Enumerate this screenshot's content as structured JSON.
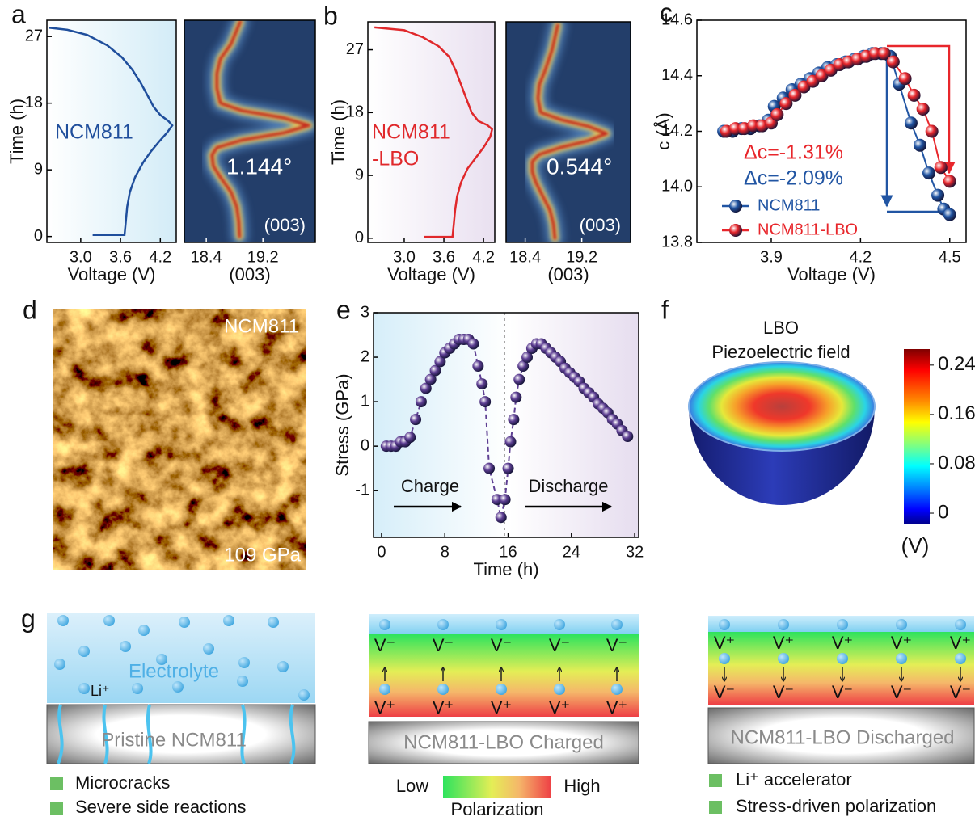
{
  "panel_labels": [
    "a",
    "b",
    "c",
    "d",
    "e",
    "f",
    "g"
  ],
  "chart_data": [
    {
      "type": "line",
      "xlabel": "Voltage (V)",
      "ylabel": "Time (h)",
      "annotation": [
        "NCM811"
      ],
      "color": "#1f4e9c",
      "x": [
        3.18,
        3.66,
        3.68,
        3.7,
        3.74,
        3.82,
        3.94,
        4.06,
        4.18,
        4.3,
        4.38,
        4.32,
        4.2,
        4.1,
        4.01,
        3.9,
        3.78,
        3.62,
        3.4,
        3.1,
        2.8,
        2.52
      ],
      "values": [
        0.2,
        0.2,
        2,
        4,
        6,
        8,
        10,
        11.5,
        12.8,
        14.0,
        15.0,
        15.6,
        16.4,
        17.5,
        19.0,
        20.8,
        22.5,
        24.2,
        25.8,
        27.2,
        27.9,
        28.2
      ],
      "xlim": [
        2.49,
        4.44
      ],
      "ylim": [
        -0.8,
        29.2
      ],
      "xticks": [
        {
          "value": 3,
          "label": "3.0"
        },
        3.6,
        4.2
      ],
      "yticks": [
        0,
        9,
        18,
        27
      ]
    },
    {
      "type": "heatmap",
      "xlabel": "(003)",
      "annotation": [
        "1.144°"
      ],
      "inset_label": "(003)",
      "x": [
        18.87,
        18.86,
        18.83,
        18.75,
        18.6,
        18.5,
        18.48,
        18.55,
        18.9,
        19.5,
        19.85,
        19.5,
        18.9,
        18.6,
        18.55,
        18.55,
        18.6,
        18.75,
        18.88
      ],
      "values": [
        0,
        2,
        4,
        6,
        8,
        9.5,
        11,
        12,
        13,
        14,
        15,
        16,
        17,
        18,
        20,
        22,
        24,
        26,
        29
      ],
      "xlim": [
        18.09,
        19.94
      ],
      "ylim": [
        -0.8,
        29.2
      ],
      "xticks": [
        18.4,
        19.2
      ]
    },
    {
      "type": "line",
      "xlabel": "Voltage (V)",
      "ylabel": "Time (h)",
      "annotation": [
        "NCM811",
        "-LBO"
      ],
      "color": "#e0282b",
      "x": [
        3.3,
        3.73,
        3.75,
        3.77,
        3.8,
        3.86,
        3.96,
        4.08,
        4.2,
        4.3,
        4.33,
        4.26,
        4.12,
        4.02,
        3.94,
        3.86,
        3.78,
        3.68,
        3.52,
        3.28,
        3.0,
        2.55
      ],
      "values": [
        0.2,
        0.2,
        2,
        4,
        6,
        8,
        10,
        11.5,
        13,
        14.5,
        15.6,
        16.2,
        16.8,
        18,
        20,
        22,
        24,
        26,
        27.5,
        28.8,
        29.8,
        30.2
      ],
      "xlim": [
        2.45,
        4.37
      ],
      "ylim": [
        -0.6,
        31.0
      ],
      "xticks": [
        {
          "value": 3,
          "label": "3.0"
        },
        3.6,
        4.2
      ],
      "yticks": [
        0,
        9,
        18,
        27
      ]
    },
    {
      "type": "heatmap",
      "xlabel": "(003)",
      "annotation": [
        "0.544°"
      ],
      "inset_label": "(003)",
      "x": [
        18.82,
        18.8,
        18.75,
        18.65,
        18.55,
        18.5,
        18.5,
        18.6,
        18.9,
        19.3,
        19.55,
        19.3,
        18.9,
        18.62,
        18.58,
        18.6,
        18.68,
        18.78,
        18.86
      ],
      "values": [
        0,
        2,
        4,
        6,
        8,
        9.5,
        11,
        12,
        13,
        14,
        15,
        16,
        17,
        18,
        20,
        22,
        24,
        27,
        30.5
      ],
      "xlim": [
        18.13,
        19.89
      ],
      "ylim": [
        -0.6,
        31.0
      ],
      "xticks": [
        18.4,
        19.2
      ]
    },
    {
      "type": "line",
      "markers": true,
      "xlabel": "Voltage (V)",
      "ylabel": "c (Å)",
      "annotation": [
        "Δc=-1.31%",
        "Δc=-2.09%"
      ],
      "series": [
        {
          "name": "NCM811",
          "color": "#2155a3",
          "x": [
            3.74,
            3.77,
            3.8,
            3.83,
            3.86,
            3.89,
            3.91,
            3.94,
            3.97,
            4.0,
            4.03,
            4.06,
            4.09,
            4.12,
            4.15,
            4.18,
            4.21,
            4.24,
            4.27,
            4.3,
            4.33,
            4.37,
            4.4,
            4.43,
            4.46,
            4.48,
            4.5
          ],
          "values": [
            14.2,
            14.2,
            14.21,
            14.21,
            14.22,
            14.24,
            14.29,
            14.32,
            14.35,
            14.37,
            14.39,
            14.41,
            14.43,
            14.44,
            14.45,
            14.46,
            14.47,
            14.48,
            14.48,
            14.47,
            14.37,
            14.23,
            14.15,
            14.05,
            13.97,
            13.92,
            13.9
          ]
        },
        {
          "name": "NCM811-LBO",
          "color": "#e8262b",
          "x": [
            3.75,
            3.78,
            3.81,
            3.84,
            3.87,
            3.9,
            3.92,
            3.95,
            3.98,
            4.01,
            4.04,
            4.07,
            4.1,
            4.13,
            4.16,
            4.19,
            4.22,
            4.25,
            4.28,
            4.31,
            4.35,
            4.38,
            4.41,
            4.44,
            4.47,
            4.5
          ],
          "values": [
            14.2,
            14.21,
            14.21,
            14.22,
            14.22,
            14.23,
            14.26,
            14.3,
            14.33,
            14.36,
            14.38,
            14.4,
            14.42,
            14.44,
            14.45,
            14.46,
            14.47,
            14.48,
            14.48,
            14.45,
            14.39,
            14.33,
            14.28,
            14.2,
            14.07,
            14.02
          ]
        }
      ],
      "xlim": [
        3.65,
        4.555
      ],
      "ylim": [
        13.8,
        14.6
      ],
      "xticks": [
        3.9,
        4.2,
        4.5
      ],
      "yticks": [
        13.8,
        {
          "value": 14,
          "label": "14.0"
        },
        14.2,
        14.4,
        14.6
      ]
    },
    {
      "type": "line",
      "markers": true,
      "line_style": "dashed",
      "xlabel": "Time (h)",
      "ylabel": "Stress (GPa)",
      "phases": [
        "Charge",
        "Discharge"
      ],
      "color": "#5e3f93",
      "x": [
        0.6,
        1.2,
        1.8,
        2.4,
        3.0,
        3.6,
        4.3,
        5.0,
        5.6,
        6.2,
        6.8,
        7.4,
        8.0,
        8.6,
        9.2,
        9.8,
        10.4,
        11.0,
        11.6,
        12.2,
        12.7,
        13.1,
        13.6,
        14.6,
        15.1,
        15.6,
        16.0,
        16.3,
        16.7,
        17.0,
        17.4,
        17.9,
        18.4,
        19.0,
        19.6,
        20.2,
        20.8,
        21.4,
        22.0,
        22.6,
        23.2,
        23.8,
        24.4,
        25.0,
        25.6,
        26.2,
        26.8,
        27.4,
        28.0,
        28.6,
        29.2,
        29.8,
        30.4,
        31.1
      ],
      "values": [
        0,
        0,
        0,
        0.1,
        0.1,
        0.2,
        0.6,
        1.0,
        1.3,
        1.5,
        1.7,
        1.9,
        2.1,
        2.2,
        2.3,
        2.4,
        2.4,
        2.4,
        2.3,
        1.8,
        1.4,
        1.0,
        -0.5,
        -1.2,
        -1.6,
        -1.2,
        -0.5,
        0.1,
        0.6,
        1.1,
        1.5,
        1.8,
        2.0,
        2.2,
        2.3,
        2.3,
        2.2,
        2.1,
        2.0,
        1.9,
        1.75,
        1.65,
        1.55,
        1.45,
        1.3,
        1.2,
        1.1,
        0.95,
        0.85,
        0.75,
        0.6,
        0.5,
        0.35,
        0.22
      ],
      "xlim": [
        -1.02,
        32.5
      ],
      "ylim": [
        -2.05,
        3
      ],
      "xticks": [
        0,
        8,
        16,
        24,
        32
      ],
      "yticks": [
        -1,
        0,
        1,
        2,
        3
      ]
    }
  ],
  "afm": {
    "label": "NCM811",
    "modulus": "109 GPa"
  },
  "piezo": {
    "title": "LBO",
    "subtitle": "Piezoelectric field",
    "colorbar": {
      "clim": [
        -0.017,
        0.266
      ],
      "ticks": [
        0.24,
        0.16,
        0.08,
        0
      ],
      "unit": "(V)"
    }
  },
  "schematic": {
    "pristine": {
      "electrolyte": "Electrolyte",
      "ion": "Li⁺",
      "cathode": "Pristine NCM811",
      "legend": [
        "Microcracks",
        "Severe side reactions"
      ]
    },
    "charged": {
      "top_charge": "V⁻",
      "bottom_charge": "V⁺",
      "cathode": "NCM811-LBO Charged"
    },
    "polarization": {
      "low": "Low",
      "high": "High",
      "label": "Polarization"
    },
    "discharged": {
      "top_charge": "V⁺",
      "bottom_charge": "V⁻",
      "cathode": "NCM811-LBO Discharged",
      "legend": [
        "Li⁺ accelerator",
        "Stress-driven polarization"
      ]
    }
  }
}
